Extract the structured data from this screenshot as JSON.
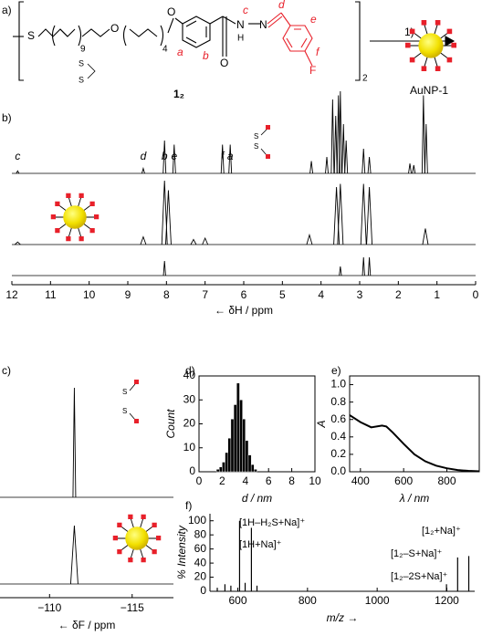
{
  "panel_labels": [
    "a)",
    "b)",
    "c)",
    "d)",
    "e)",
    "f)"
  ],
  "scheme": {
    "S": "S",
    "chain_n": "9",
    "O1": "O",
    "peg_n": "4",
    "O2": "O",
    "O3": "O",
    "N1": "N",
    "H": "H",
    "N2": "N",
    "F": "F",
    "letters": [
      "a",
      "b",
      "c",
      "d",
      "e",
      "f"
    ],
    "dimer": "2",
    "compound": "1₂",
    "reagent": "1)",
    "product": "AuNP-1",
    "disulfide": [
      "S",
      "S"
    ]
  },
  "chart_data": [
    {
      "type": "spectrum",
      "xlabel": "← δH / ppm",
      "xlim": [
        12,
        0
      ],
      "xticks": [
        12,
        11,
        10,
        9,
        8,
        7,
        6,
        5,
        4,
        3,
        2,
        1,
        0
      ],
      "annotations": [
        "c",
        "d",
        "b",
        "e",
        "f",
        "a"
      ],
      "annotation_color": "#e8202a",
      "series": [
        {
          "color": "#000000",
          "x": [
            11.85,
            8.6,
            8.05,
            7.8,
            6.55,
            6.35,
            4.25,
            3.85,
            3.7,
            3.62,
            3.55,
            3.5,
            3.42,
            3.35,
            2.9,
            2.75,
            1.7,
            1.6,
            1.35,
            1.28
          ],
          "values": [
            0.03,
            0.06,
            0.4,
            0.35,
            0.35,
            0.35,
            0.15,
            0.2,
            0.9,
            0.7,
            0.95,
            1.0,
            0.6,
            0.4,
            0.3,
            0.2,
            0.12,
            0.1,
            0.95,
            0.6
          ]
        },
        {
          "color": "#000000",
          "x": [
            11.85,
            8.6,
            8.05,
            7.95,
            7.3,
            7.0,
            4.3,
            3.6,
            3.5,
            2.9,
            2.75,
            1.3
          ],
          "values": [
            0.04,
            0.12,
            1.0,
            0.85,
            0.08,
            0.1,
            0.15,
            0.9,
            0.95,
            0.95,
            0.9,
            0.25
          ]
        },
        {
          "color": "#000000",
          "x": [
            8.05,
            3.5,
            2.9,
            2.75
          ],
          "values": [
            0.8,
            0.5,
            1.0,
            1.0
          ]
        }
      ]
    },
    {
      "type": "spectrum",
      "xlabel": "← δF / ppm",
      "xlim": [
        -107,
        -117.5
      ],
      "xticks": [
        {
          "value": -110,
          "label": "−110"
        },
        {
          "value": -115,
          "label": "−115"
        }
      ],
      "series": [
        {
          "color": "#000000",
          "x": [
            -111.5
          ],
          "values": [
            1
          ]
        },
        {
          "color": "#000000",
          "x": [
            -111.5
          ],
          "values": [
            0.8
          ]
        }
      ]
    },
    {
      "type": "histogram",
      "xlabel": "d / nm",
      "ylabel": "Count",
      "color": "#000000",
      "bins": [
        1.5,
        1.75,
        2.0,
        2.25,
        2.5,
        2.75,
        3.0,
        3.25,
        3.5,
        3.75,
        4.0,
        4.25,
        4.5,
        4.75,
        5.0
      ],
      "counts": [
        1,
        2,
        4,
        8,
        14,
        22,
        28,
        37,
        30,
        22,
        13,
        7,
        3,
        1
      ],
      "xlim": [
        0,
        10
      ],
      "xticks": [
        0,
        2,
        4,
        6,
        8,
        10
      ],
      "ylim": [
        0,
        40
      ],
      "yticks": [
        0,
        10,
        20,
        30,
        40
      ]
    },
    {
      "type": "line",
      "xlabel": "λ / nm",
      "ylabel": "A",
      "color": "#000000",
      "x": [
        350,
        400,
        450,
        500,
        520,
        550,
        600,
        650,
        700,
        750,
        800,
        850,
        900,
        950
      ],
      "values": [
        0.65,
        0.57,
        0.51,
        0.53,
        0.52,
        0.45,
        0.32,
        0.2,
        0.12,
        0.07,
        0.04,
        0.02,
        0.01,
        0.005
      ],
      "xlim": [
        350,
        950
      ],
      "xticks": [
        400,
        600,
        800
      ],
      "ylim": [
        0,
        1.1
      ],
      "yticks": [
        {
          "value": 0,
          "label": "0.0"
        },
        0.2,
        0.4,
        0.6,
        0.8,
        {
          "value": 1,
          "label": "1.0"
        }
      ]
    },
    {
      "type": "stick",
      "xlabel": "m/z →",
      "ylabel": "% Intensity",
      "color": "#000000",
      "x": [
        541,
        563,
        580,
        605,
        621,
        639,
        655,
        1199,
        1231,
        1263
      ],
      "values": [
        5,
        10,
        8,
        100,
        12,
        90,
        8,
        10,
        48,
        50
      ],
      "annotations": [
        "[1H–H₂S+Na]⁺",
        "[1H+Na]⁺",
        "[1₂+Na]⁺",
        "[1₂–S+Na]⁺",
        "[1₂–2S+Na]⁺"
      ],
      "xlim": [
        520,
        1280
      ],
      "xticks": [
        600,
        800,
        1000,
        1200
      ],
      "ylim": [
        0,
        110
      ],
      "yticks": [
        0,
        20,
        40,
        60,
        80,
        100
      ]
    }
  ]
}
